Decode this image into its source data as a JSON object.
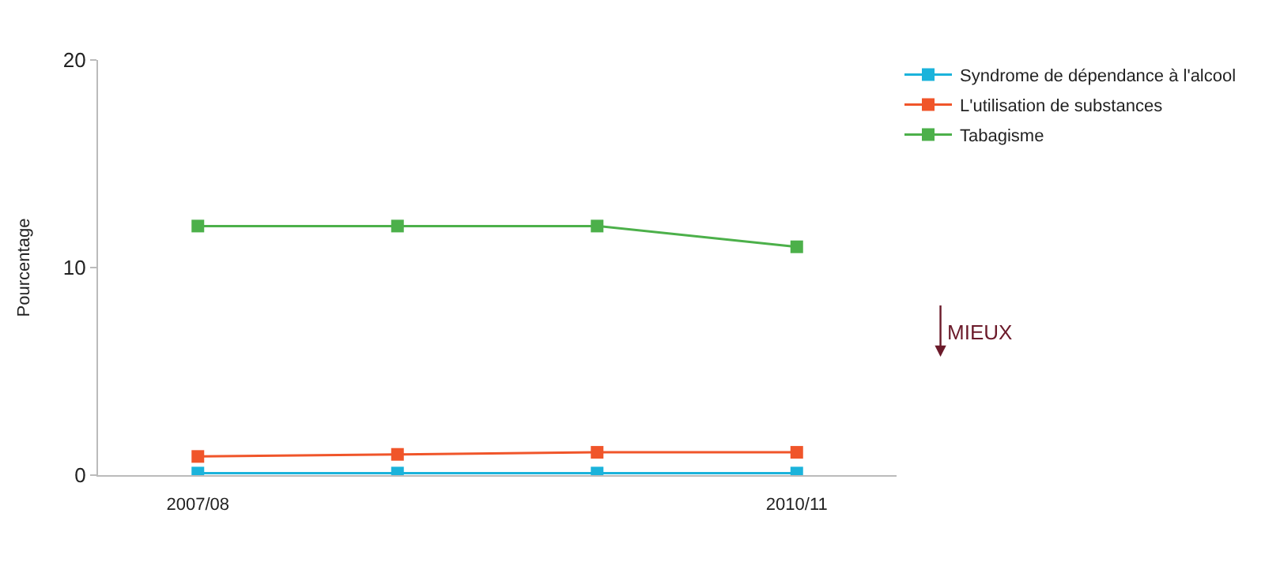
{
  "chart_data": {
    "type": "line",
    "ylabel": "Pourcentage",
    "categories": [
      "2007/08",
      null,
      null,
      "2010/11"
    ],
    "ylim": [
      0,
      20
    ],
    "yticks": [
      0,
      10,
      20
    ],
    "legend": "top right",
    "marker": "square",
    "line_style": "solid",
    "series": [
      {
        "name": "Syndrome de dépendance à l'alcool",
        "color": "#1bb3db",
        "values": [
          0.1,
          0.1,
          0.1,
          0.1
        ]
      },
      {
        "name": "L'utilisation de substances",
        "color": "#f0552a",
        "values": [
          0.9,
          1.0,
          1.1,
          1.1
        ]
      },
      {
        "name": "Tabagisme",
        "color": "#4cb04a",
        "values": [
          12,
          12,
          12,
          11
        ]
      }
    ],
    "annotations": [
      "MIEUX"
    ]
  }
}
